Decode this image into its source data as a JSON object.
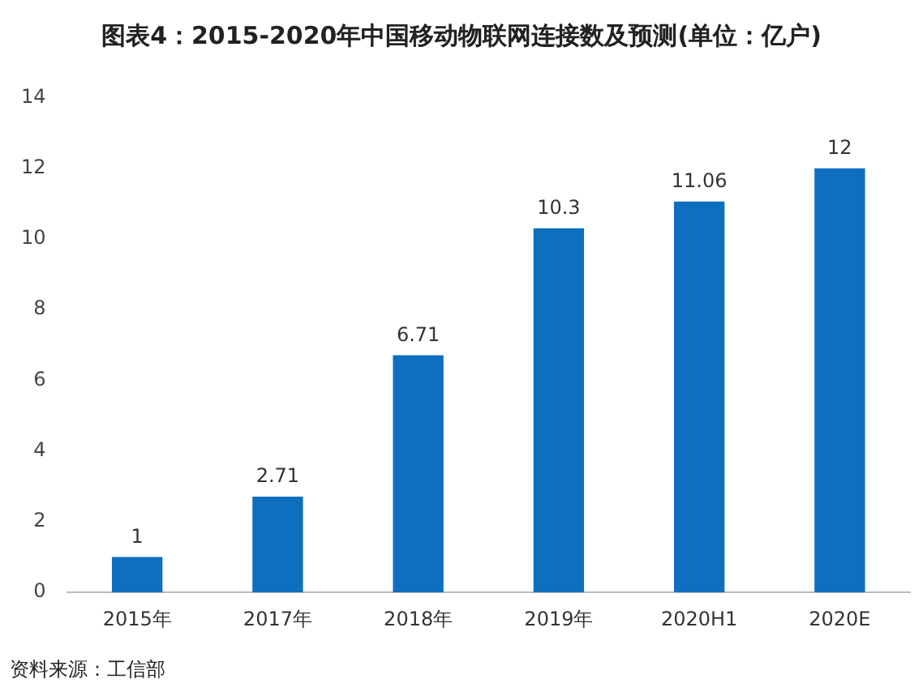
{
  "chart_data": {
    "type": "bar",
    "title": "图表4：2015-2020年中国移动物联网连接数及预测(单位：亿户)",
    "categories": [
      "2015年",
      "2017年",
      "2018年",
      "2019年",
      "2020H1",
      "2020E"
    ],
    "values": [
      1,
      2.71,
      6.71,
      10.3,
      11.06,
      12
    ],
    "color": "#0e6fbf",
    "ylim": [
      0,
      14
    ],
    "yticks": [
      0,
      2,
      4,
      6,
      8,
      10,
      12,
      14
    ],
    "data_labels": true,
    "annotations": [
      "资料来源：工信部"
    ]
  }
}
